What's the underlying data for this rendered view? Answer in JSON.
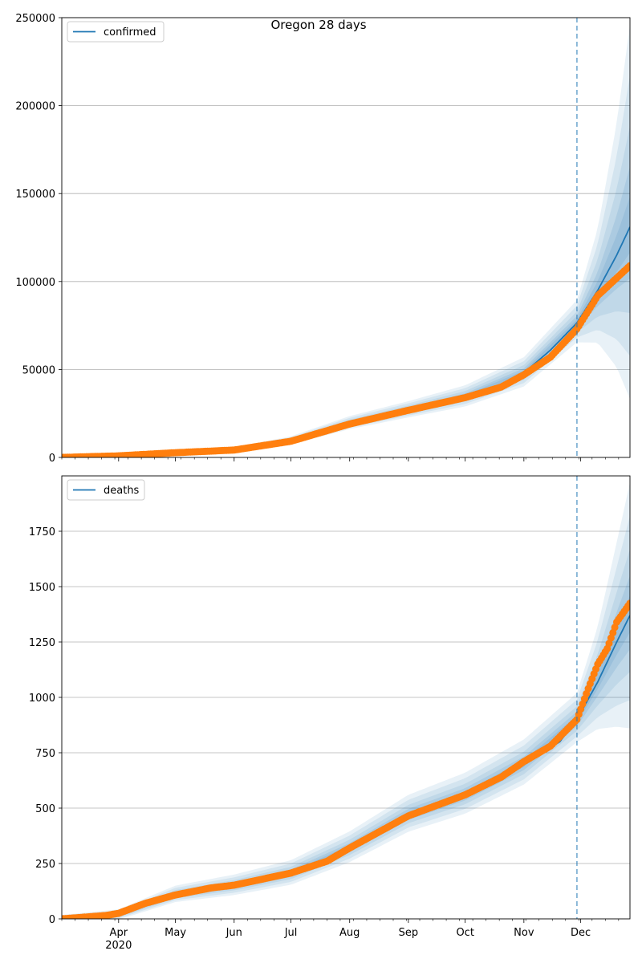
{
  "chart_data": [
    {
      "type": "line",
      "title": "Oregon 28 days",
      "xlabel": "",
      "ylabel": "",
      "ylim": [
        0,
        250000
      ],
      "yticks": [
        0,
        50000,
        100000,
        150000,
        200000,
        250000
      ],
      "grid": "horizontal",
      "legend": {
        "position": "top-left",
        "entries": [
          "confirmed"
        ]
      },
      "forecast_start": "2020-11-29",
      "xlim": [
        "2020-03-02",
        "2020-12-27"
      ],
      "series": [
        {
          "name": "confirmed",
          "kind": "forecast-line",
          "color": "#1f77b4",
          "x": [
            "2020-03-02",
            "2020-04-01",
            "2020-05-01",
            "2020-06-01",
            "2020-07-01",
            "2020-08-01",
            "2020-09-01",
            "2020-10-01",
            "2020-10-20",
            "2020-11-01",
            "2020-11-15",
            "2020-11-29",
            "2020-12-10",
            "2020-12-20",
            "2020-12-27"
          ],
          "values": [
            100,
            1000,
            2800,
            4300,
            9500,
            19500,
            27000,
            34500,
            40500,
            48000,
            61000,
            76500,
            95000,
            115000,
            131000
          ]
        },
        {
          "kind": "observed-points",
          "color": "#ff7f0e",
          "x": [
            "2020-03-02",
            "2020-04-01",
            "2020-05-01",
            "2020-06-01",
            "2020-07-01",
            "2020-08-01",
            "2020-09-01",
            "2020-10-01",
            "2020-10-20",
            "2020-11-01",
            "2020-11-15",
            "2020-11-29",
            "2020-12-10",
            "2020-12-20",
            "2020-12-27"
          ],
          "values": [
            0,
            900,
            2700,
            4200,
            9200,
            19000,
            26800,
            34000,
            40000,
            47000,
            57000,
            73000,
            92000,
            102000,
            109000
          ]
        }
      ],
      "bands": {
        "color": "#1f77b4",
        "x": [
          "2020-03-02",
          "2020-04-01",
          "2020-05-01",
          "2020-06-01",
          "2020-07-01",
          "2020-08-01",
          "2020-09-01",
          "2020-10-01",
          "2020-11-01",
          "2020-11-29",
          "2020-12-10",
          "2020-12-20",
          "2020-12-27"
        ],
        "center": [
          100,
          1000,
          2800,
          4300,
          9500,
          19500,
          27000,
          34500,
          48000,
          76500,
          95000,
          115000,
          131000
        ],
        "outer_spread": [
          200,
          600,
          1000,
          1500,
          2500,
          4000,
          5000,
          6500,
          9000,
          13000,
          35000,
          75000,
          115000
        ]
      }
    },
    {
      "type": "line",
      "title": "",
      "xlabel": "",
      "ylabel": "",
      "ylim": [
        0,
        2000
      ],
      "yticks": [
        0,
        250,
        500,
        750,
        1000,
        1250,
        1500,
        1750
      ],
      "grid": "horizontal",
      "legend": {
        "position": "top-left",
        "entries": [
          "deaths"
        ]
      },
      "forecast_start": "2020-11-29",
      "xlim": [
        "2020-03-02",
        "2020-12-27"
      ],
      "xticks": [
        {
          "label": "Apr",
          "date": "2020-04-01",
          "year": "2020"
        },
        {
          "label": "May",
          "date": "2020-05-01"
        },
        {
          "label": "Jun",
          "date": "2020-06-01"
        },
        {
          "label": "Jul",
          "date": "2020-07-01"
        },
        {
          "label": "Aug",
          "date": "2020-08-01"
        },
        {
          "label": "Sep",
          "date": "2020-09-01"
        },
        {
          "label": "Oct",
          "date": "2020-10-01"
        },
        {
          "label": "Nov",
          "date": "2020-11-01"
        },
        {
          "label": "Dec",
          "date": "2020-12-01"
        }
      ],
      "series": [
        {
          "name": "deaths",
          "kind": "forecast-line",
          "color": "#1f77b4",
          "x": [
            "2020-03-02",
            "2020-03-25",
            "2020-04-01",
            "2020-04-15",
            "2020-05-01",
            "2020-05-20",
            "2020-06-01",
            "2020-07-01",
            "2020-07-20",
            "2020-08-01",
            "2020-09-01",
            "2020-10-01",
            "2020-10-20",
            "2020-11-01",
            "2020-11-20",
            "2020-11-29",
            "2020-12-10",
            "2020-12-20",
            "2020-12-27"
          ],
          "values": [
            3,
            10,
            18,
            65,
            110,
            140,
            150,
            205,
            265,
            320,
            470,
            560,
            640,
            700,
            800,
            900,
            1070,
            1250,
            1370
          ]
        },
        {
          "kind": "observed-points",
          "color": "#ff7f0e",
          "x": [
            "2020-03-02",
            "2020-03-25",
            "2020-04-01",
            "2020-04-15",
            "2020-05-01",
            "2020-05-20",
            "2020-06-01",
            "2020-07-01",
            "2020-07-20",
            "2020-08-01",
            "2020-09-01",
            "2020-10-01",
            "2020-10-20",
            "2020-11-01",
            "2020-11-15",
            "2020-11-29",
            "2020-12-05",
            "2020-12-10",
            "2020-12-15",
            "2020-12-20",
            "2020-12-27"
          ],
          "values": [
            0,
            15,
            25,
            70,
            108,
            140,
            152,
            207,
            260,
            320,
            465,
            560,
            640,
            710,
            780,
            900,
            1040,
            1150,
            1220,
            1340,
            1425
          ]
        }
      ],
      "bands": {
        "color": "#1f77b4",
        "x": [
          "2020-03-02",
          "2020-04-01",
          "2020-05-01",
          "2020-06-01",
          "2020-07-01",
          "2020-08-01",
          "2020-09-01",
          "2020-10-01",
          "2020-11-01",
          "2020-11-29",
          "2020-12-10",
          "2020-12-20",
          "2020-12-27"
        ],
        "center": [
          3,
          18,
          110,
          150,
          205,
          320,
          470,
          560,
          700,
          900,
          1070,
          1250,
          1370
        ],
        "outer_spread": [
          15,
          25,
          40,
          50,
          60,
          75,
          90,
          100,
          110,
          120,
          250,
          450,
          600
        ]
      }
    }
  ]
}
